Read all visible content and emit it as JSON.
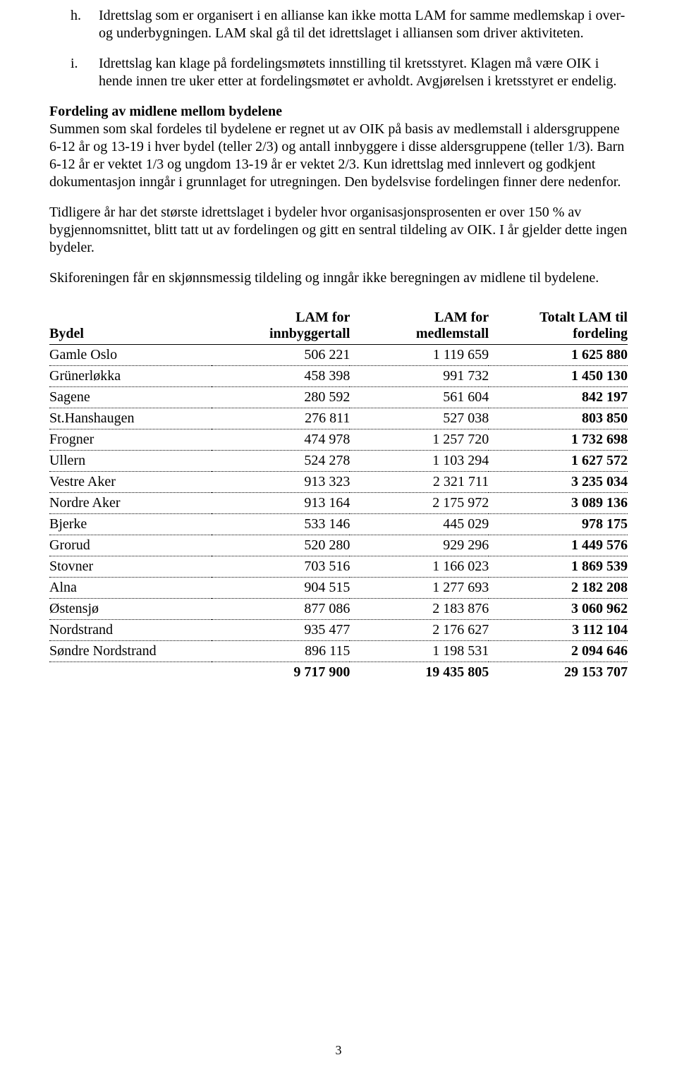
{
  "list": {
    "h": {
      "marker": "h.",
      "text": "Idrettslag som er organisert i en allianse kan ikke motta LAM for samme medlemskap i over- og underbygningen. LAM skal gå til det idrettslaget i alliansen som driver aktiviteten."
    },
    "i": {
      "marker": "i.",
      "text": "Idrettslag kan klage på fordelingsmøtets innstilling til kretsstyret. Klagen må være OIK i hende innen tre uker etter at fordelingsmøtet er avholdt. Avgjørelsen i kretsstyret er endelig."
    }
  },
  "section": {
    "title": "Fordeling av midlene mellom bydelene",
    "p1": "Summen som skal fordeles til bydelene er regnet ut av OIK på basis av medlemstall i aldersgruppene 6-12 år og 13-19 i hver bydel (teller 2/3) og antall innbyggere i disse aldersgruppene (teller 1/3). Barn 6-12 år er vektet 1/3 og ungdom 13-19 år er vektet 2/3. Kun idrettslag med innlevert og godkjent dokumentasjon inngår i grunnlaget for utregningen. Den bydelsvise fordelingen finner dere nedenfor.",
    "p2": "Tidligere år har det største idrettslaget i bydeler hvor organisasjonsprosenten er over 150 % av bygjennomsnittet, blitt tatt ut av fordelingen og gitt en sentral tildeling av OIK. I år gjelder dette ingen bydeler.",
    "p3": "Skiforeningen får en skjønnsmessig tildeling og inngår ikke beregningen av midlene til bydelene."
  },
  "table": {
    "headers": {
      "bydel": "Bydel",
      "inn1": "LAM for",
      "inn2": "innbyggertall",
      "med1": "LAM for",
      "med2": "medlemstall",
      "tot1": "Totalt LAM til",
      "tot2": "fordeling"
    },
    "rows": [
      {
        "bydel": "Gamle Oslo",
        "inn": "506 221",
        "med": "1 119 659",
        "tot": "1 625 880"
      },
      {
        "bydel": "Grünerløkka",
        "inn": "458 398",
        "med": "991 732",
        "tot": "1 450 130"
      },
      {
        "bydel": "Sagene",
        "inn": "280 592",
        "med": "561 604",
        "tot": "842 197"
      },
      {
        "bydel": "St.Hanshaugen",
        "inn": "276 811",
        "med": "527 038",
        "tot": "803 850"
      },
      {
        "bydel": "Frogner",
        "inn": "474 978",
        "med": "1 257 720",
        "tot": "1 732 698"
      },
      {
        "bydel": "Ullern",
        "inn": "524 278",
        "med": "1 103 294",
        "tot": "1 627 572"
      },
      {
        "bydel": "Vestre Aker",
        "inn": "913 323",
        "med": "2 321 711",
        "tot": "3 235 034"
      },
      {
        "bydel": "Nordre Aker",
        "inn": "913 164",
        "med": "2 175 972",
        "tot": "3 089 136"
      },
      {
        "bydel": "Bjerke",
        "inn": "533 146",
        "med": "445 029",
        "tot": "978 175"
      },
      {
        "bydel": "Grorud",
        "inn": "520 280",
        "med": "929 296",
        "tot": "1 449 576"
      },
      {
        "bydel": "Stovner",
        "inn": "703 516",
        "med": "1 166 023",
        "tot": "1 869 539"
      },
      {
        "bydel": "Alna",
        "inn": "904 515",
        "med": "1 277 693",
        "tot": "2 182 208"
      },
      {
        "bydel": "Østensjø",
        "inn": "877 086",
        "med": "2 183 876",
        "tot": "3 060 962"
      },
      {
        "bydel": "Nordstrand",
        "inn": "935 477",
        "med": "2 176 627",
        "tot": "3 112 104"
      },
      {
        "bydel": "Søndre Nordstrand",
        "inn": "896 115",
        "med": "1 198 531",
        "tot": "2 094 646"
      }
    ],
    "total": {
      "bydel": "",
      "inn": "9 717 900",
      "med": "19 435 805",
      "tot": "29 153 707"
    }
  },
  "pagenum": "3"
}
